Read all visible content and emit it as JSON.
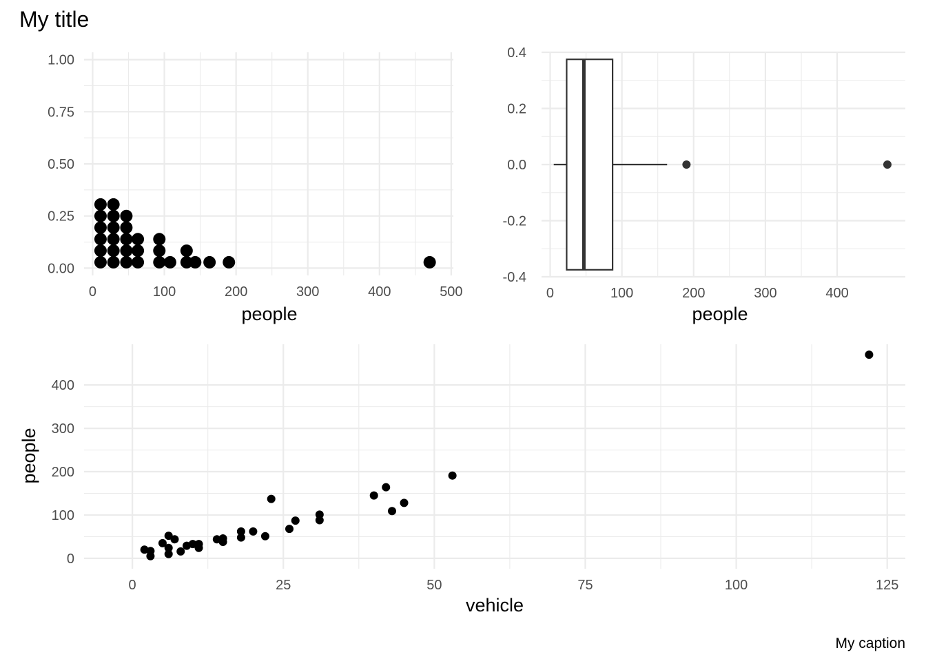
{
  "title": "My title",
  "caption": "My caption",
  "chart_data": [
    {
      "type": "dotplot",
      "xlabel": "people",
      "ylabel": "",
      "xlim": [
        -12,
        503
      ],
      "ylim": [
        -0.035,
        1.035
      ],
      "x_ticks": [
        0,
        100,
        200,
        300,
        400,
        500
      ],
      "x_tick_labels": [
        "0",
        "100",
        "200",
        "300",
        "400",
        "500"
      ],
      "y_ticks": [
        0.0,
        0.25,
        0.5,
        0.75,
        1.0
      ],
      "y_tick_labels": [
        "0.00",
        "0.25",
        "0.50",
        "0.75",
        "1.00"
      ],
      "grid": true,
      "stacks": [
        {
          "x": 11,
          "count": 6
        },
        {
          "x": 29,
          "count": 6
        },
        {
          "x": 47,
          "count": 5
        },
        {
          "x": 63,
          "count": 3
        },
        {
          "x": 93,
          "count": 3
        },
        {
          "x": 108,
          "count": 1
        },
        {
          "x": 131,
          "count": 2
        },
        {
          "x": 143,
          "count": 1
        },
        {
          "x": 163,
          "count": 1
        },
        {
          "x": 190,
          "count": 1
        },
        {
          "x": 470,
          "count": 1
        }
      ]
    },
    {
      "type": "boxplot",
      "orientation": "horizontal",
      "xlabel": "people",
      "ylabel": "",
      "xlim": [
        -12,
        495
      ],
      "ylim": [
        -0.4,
        0.4
      ],
      "x_ticks": [
        0,
        100,
        200,
        300,
        400
      ],
      "x_tick_labels": [
        "0",
        "100",
        "200",
        "300",
        "400"
      ],
      "y_ticks": [
        -0.4,
        -0.2,
        0.0,
        0.2,
        0.4
      ],
      "y_tick_labels": [
        "-0.4",
        "-0.2",
        "0.0",
        "0.2",
        "0.4"
      ],
      "grid": true,
      "box": {
        "whisker_low": 5,
        "q1": 23,
        "median": 47,
        "q3": 87,
        "whisker_high": 163,
        "box_ymin": -0.375,
        "box_ymax": 0.375,
        "outliers": [
          190,
          470
        ]
      }
    },
    {
      "type": "scatter",
      "xlabel": "vehicle",
      "ylabel": "people",
      "xlim": [
        -8,
        128
      ],
      "ylim": [
        -24,
        494
      ],
      "x_ticks": [
        0,
        25,
        50,
        75,
        100,
        125
      ],
      "x_tick_labels": [
        "0",
        "25",
        "50",
        "75",
        "100",
        "125"
      ],
      "y_ticks": [
        0,
        100,
        200,
        300,
        400
      ],
      "y_tick_labels": [
        "0",
        "100",
        "200",
        "300",
        "400"
      ],
      "grid": true,
      "x": [
        2,
        3,
        3,
        5,
        6,
        6,
        6,
        7,
        8,
        9,
        10,
        11,
        11,
        14,
        15,
        15,
        18,
        18,
        20,
        22,
        23,
        26,
        27,
        31,
        31,
        40,
        42,
        43,
        45,
        53,
        122
      ],
      "y": [
        20,
        17,
        5,
        35,
        52,
        24,
        10,
        44,
        16,
        29,
        33,
        33,
        24,
        44,
        46,
        38,
        62,
        48,
        62,
        51,
        137,
        68,
        87,
        101,
        88,
        145,
        164,
        109,
        128,
        191,
        470
      ]
    }
  ]
}
